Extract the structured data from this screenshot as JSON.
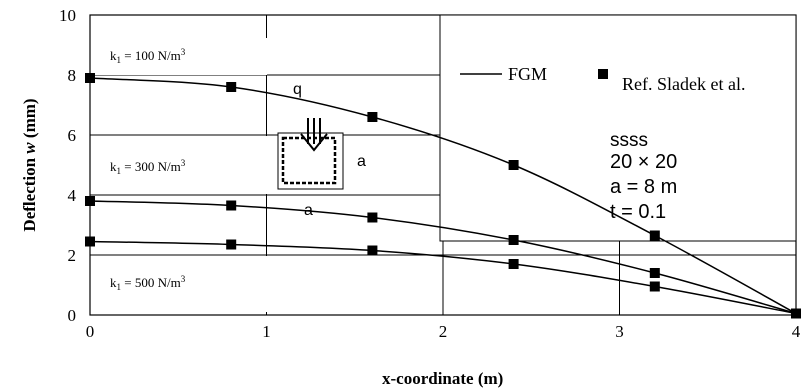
{
  "chart_data": {
    "type": "line",
    "xlabel": "x-coordinate (m)",
    "ylabel": "Deflection w (mm)",
    "ylabel_parts": [
      "Deflection ",
      "w",
      " (mm)"
    ],
    "xlim": [
      0,
      4
    ],
    "ylim": [
      0,
      10
    ],
    "xticks": [
      "0",
      "1",
      "2",
      "3",
      "4"
    ],
    "yticks": [
      "0",
      "2",
      "4",
      "6",
      "8",
      "10"
    ],
    "grid": true,
    "legend": {
      "position": "top-right",
      "line_label": "FGM",
      "marker_label": "Ref. Sladek et al."
    },
    "series": [
      {
        "name": "k1 = 100 N/m3",
        "x": [
          0,
          0.8,
          1.6,
          2.4,
          3.2,
          4.0
        ],
        "y": [
          7.9,
          7.6,
          6.6,
          5.0,
          2.65,
          0.05
        ]
      },
      {
        "name": "k1 = 300 N/m3",
        "x": [
          0,
          0.8,
          1.6,
          2.4,
          3.2,
          4.0
        ],
        "y": [
          3.8,
          3.65,
          3.25,
          2.5,
          1.4,
          0.05
        ]
      },
      {
        "name": "k1 = 500 N/m3",
        "x": [
          0,
          0.8,
          1.6,
          2.4,
          3.2,
          4.0
        ],
        "y": [
          2.45,
          2.35,
          2.15,
          1.7,
          0.95,
          0.05
        ]
      }
    ],
    "curve_labels": [
      {
        "prefix": "k",
        "sub": "1",
        "mid": " = 100 N/m",
        "sup": "3"
      },
      {
        "prefix": "k",
        "sub": "1",
        "mid": " = 300 N/m",
        "sup": "3"
      },
      {
        "prefix": "k",
        "sub": "1",
        "mid": " = 500 N/m",
        "sup": "3"
      }
    ],
    "annotations": {
      "q": "q",
      "a_side": "a",
      "a_bottom": "a",
      "bc": "ssss",
      "mesh": "20 × 20",
      "a_value": "a = 8   m",
      "thickness": "t = 0.1"
    }
  }
}
